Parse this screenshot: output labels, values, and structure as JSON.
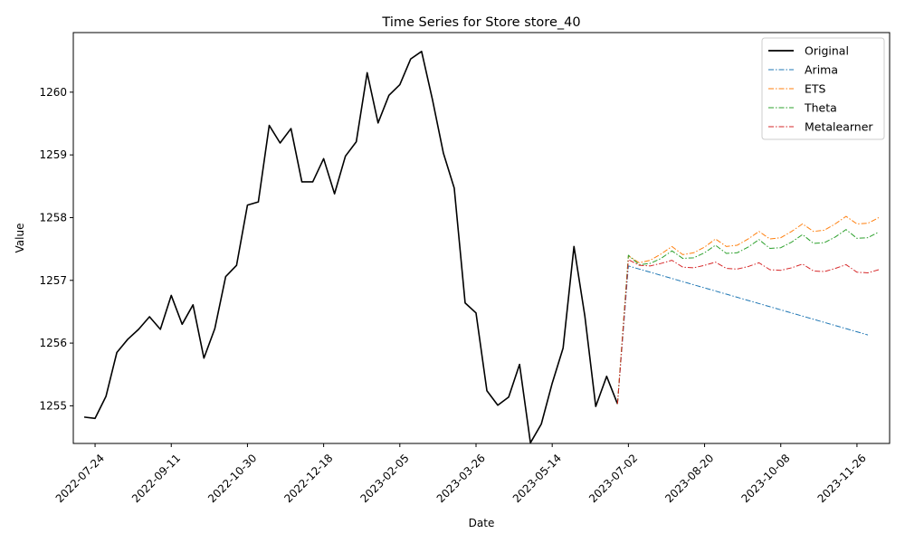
{
  "chart_data": {
    "type": "line",
    "title": "Time Series for Store store_40",
    "xlabel": "Date",
    "ylabel": "Value",
    "xlim": [
      "2022-07-10",
      "2023-12-17"
    ],
    "ylim": [
      1254.4,
      1260.95
    ],
    "grid": false,
    "legend_position": "top-right",
    "x_ticks": [
      "2022-07-24",
      "2022-09-11",
      "2022-10-30",
      "2022-12-18",
      "2023-02-05",
      "2023-03-26",
      "2023-05-14",
      "2023-07-02",
      "2023-08-20",
      "2023-10-08",
      "2023-11-26"
    ],
    "y_ticks": [
      1255,
      1256,
      1257,
      1258,
      1259,
      1260
    ],
    "x_start": "2022-07-17",
    "x_step_days": 7,
    "series": [
      {
        "name": "Original",
        "color": "#000000",
        "dash": "solid",
        "start_index": 0,
        "values": [
          1254.82,
          1254.8,
          1255.15,
          1255.85,
          1256.06,
          1256.22,
          1256.42,
          1256.22,
          1256.76,
          1256.3,
          1256.61,
          1255.76,
          1256.23,
          1257.06,
          1257.24,
          1258.2,
          1258.25,
          1259.47,
          1259.19,
          1259.42,
          1258.57,
          1258.57,
          1258.94,
          1258.38,
          1258.98,
          1259.21,
          1260.31,
          1259.51,
          1259.95,
          1260.12,
          1260.53,
          1260.65,
          1259.88,
          1259.03,
          1258.47,
          1256.64,
          1256.48,
          1255.24,
          1255.01,
          1255.14,
          1255.66,
          1254.41,
          1254.71,
          1255.36,
          1255.92,
          1257.54,
          1256.43,
          1254.99,
          1255.47,
          1255.03
        ]
      },
      {
        "name": "Arima",
        "color": "#1f77b4",
        "dash": "dashdot",
        "start_index": 49,
        "values": [
          1255.03,
          1257.23,
          1257.18,
          1257.13,
          1257.08,
          1257.03,
          1256.98,
          1256.93,
          1256.88,
          1256.83,
          1256.78,
          1256.73,
          1256.68,
          1256.63,
          1256.58,
          1256.53,
          1256.48,
          1256.43,
          1256.38,
          1256.33,
          1256.28,
          1256.23,
          1256.18,
          1256.13
        ]
      },
      {
        "name": "ETS",
        "color": "#ff7f0e",
        "dash": "dashdot",
        "start_index": 49,
        "values": [
          1255.03,
          1257.39,
          1257.28,
          1257.32,
          1257.42,
          1257.54,
          1257.41,
          1257.44,
          1257.53,
          1257.66,
          1257.54,
          1257.56,
          1257.66,
          1257.78,
          1257.66,
          1257.68,
          1257.78,
          1257.9,
          1257.78,
          1257.8,
          1257.9,
          1258.02,
          1257.9,
          1257.91,
          1258.0
        ]
      },
      {
        "name": "Theta",
        "color": "#2ca02c",
        "dash": "dashdot",
        "start_index": 49,
        "values": [
          1255.03,
          1257.4,
          1257.25,
          1257.27,
          1257.35,
          1257.47,
          1257.35,
          1257.36,
          1257.44,
          1257.56,
          1257.43,
          1257.44,
          1257.53,
          1257.65,
          1257.51,
          1257.52,
          1257.61,
          1257.73,
          1257.59,
          1257.6,
          1257.69,
          1257.81,
          1257.67,
          1257.68,
          1257.77
        ]
      },
      {
        "name": "Metalearner",
        "color": "#d62728",
        "dash": "dashdot",
        "start_index": 49,
        "values": [
          1255.03,
          1257.33,
          1257.24,
          1257.23,
          1257.27,
          1257.32,
          1257.21,
          1257.2,
          1257.24,
          1257.29,
          1257.19,
          1257.18,
          1257.22,
          1257.28,
          1257.17,
          1257.16,
          1257.2,
          1257.26,
          1257.15,
          1257.14,
          1257.19,
          1257.25,
          1257.13,
          1257.12,
          1257.17
        ]
      }
    ]
  }
}
